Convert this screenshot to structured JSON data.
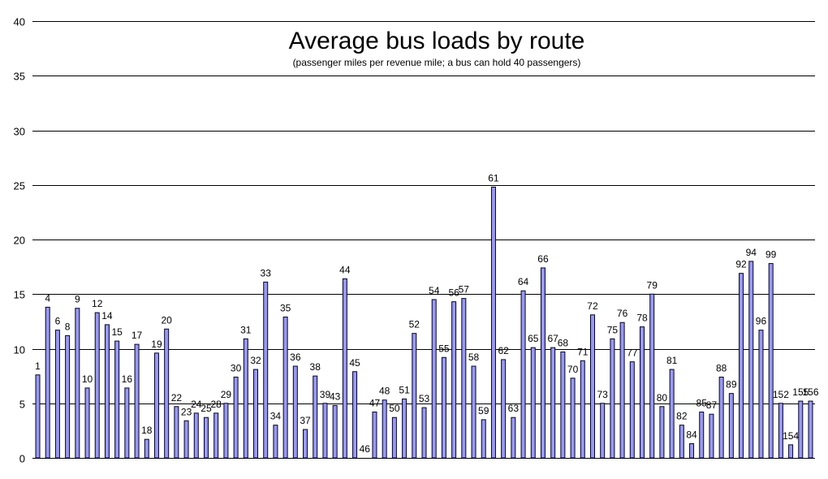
{
  "chart_data": {
    "type": "bar",
    "title": "Average bus loads by route",
    "subtitle": "(passenger miles per revenue mile; a bus can hold 40 passengers)",
    "xlabel": "",
    "ylabel": "",
    "ylim": [
      0,
      40
    ],
    "yticks": [
      "0",
      "5",
      "10",
      "15",
      "20",
      "25",
      "30",
      "35",
      "40"
    ],
    "grid": true,
    "legend": "none",
    "bar_color": "#9a9ae6",
    "categories": [
      "1",
      "4",
      "6",
      "8",
      "9",
      "10",
      "12",
      "14",
      "15",
      "16",
      "17",
      "18",
      "19",
      "20",
      "22",
      "23",
      "24",
      "25",
      "28",
      "29",
      "30",
      "31",
      "32",
      "33",
      "34",
      "35",
      "36",
      "37",
      "38",
      "39",
      "43",
      "44",
      "45",
      "46",
      "47",
      "48",
      "50",
      "51",
      "52",
      "53",
      "54",
      "55",
      "56",
      "57",
      "58",
      "59",
      "61",
      "62",
      "63",
      "64",
      "65",
      "66",
      "67",
      "68",
      "70",
      "71",
      "72",
      "73",
      "75",
      "76",
      "77",
      "78",
      "79",
      "80",
      "81",
      "82",
      "84",
      "85",
      "87",
      "88",
      "89",
      "92",
      "94",
      "96",
      "99",
      "152",
      "154",
      "155",
      "156"
    ],
    "values": [
      7.6,
      13.8,
      11.7,
      11.2,
      13.7,
      6.4,
      13.3,
      12.2,
      10.7,
      6.4,
      10.4,
      1.7,
      9.6,
      11.8,
      4.7,
      3.4,
      4.1,
      3.7,
      4.1,
      5.0,
      7.4,
      10.9,
      8.1,
      16.1,
      3.0,
      12.9,
      8.4,
      2.6,
      7.5,
      5.0,
      4.8,
      16.4,
      7.9,
      0.0,
      4.2,
      5.3,
      3.7,
      5.4,
      11.4,
      4.6,
      14.5,
      9.2,
      14.3,
      14.6,
      8.4,
      3.5,
      24.8,
      9.0,
      3.7,
      15.3,
      10.1,
      17.4,
      10.1,
      9.7,
      7.3,
      8.9,
      13.1,
      5.0,
      10.9,
      12.4,
      8.8,
      12.0,
      15.0,
      4.7,
      8.1,
      3.0,
      1.3,
      4.2,
      4.0,
      7.4,
      5.9,
      16.9,
      18.0,
      11.7,
      17.8,
      5.0,
      1.2,
      5.2,
      5.2
    ]
  }
}
